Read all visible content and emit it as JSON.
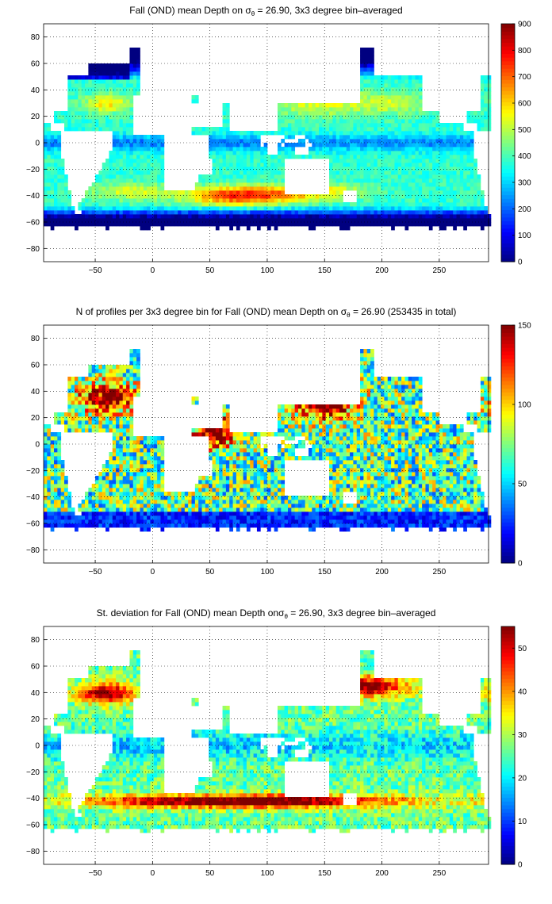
{
  "chart_data": [
    {
      "type": "heatmap",
      "title": "Fall (OND) mean Depth on σθ = 26.90, 3x3 degree bin–averaged",
      "title_parts": {
        "pre": "Fall (OND) mean Depth on ",
        "sym": "σ",
        "sub": "θ",
        "post": " = 26.90, 3x3 degree bin–averaged"
      },
      "xlim": [
        -95,
        293
      ],
      "ylim": [
        -90,
        90
      ],
      "xticks": [
        -50,
        0,
        50,
        100,
        150,
        200,
        250
      ],
      "yticks": [
        -80,
        -60,
        -40,
        -20,
        0,
        20,
        40,
        60,
        80
      ],
      "grid": true,
      "colorbar": {
        "range": [
          0,
          900
        ],
        "ticks": [
          0,
          100,
          200,
          300,
          400,
          500,
          600,
          700,
          800,
          900
        ]
      },
      "field": "mean_depth"
    },
    {
      "type": "heatmap",
      "title": "N of profiles per 3x3 degree bin for Fall (OND) mean Depth on σθ = 26.90 (253435 in total)",
      "title_parts": {
        "pre": "N of profiles per 3x3 degree bin for Fall (OND) mean Depth on ",
        "sym": "σ",
        "sub": "θ",
        "post": " = 26.90 (253435 in total)"
      },
      "xlim": [
        -95,
        293
      ],
      "ylim": [
        -90,
        90
      ],
      "xticks": [
        -50,
        0,
        50,
        100,
        150,
        200,
        250
      ],
      "yticks": [
        -80,
        -60,
        -40,
        -20,
        0,
        20,
        40,
        60,
        80
      ],
      "grid": true,
      "colorbar": {
        "range": [
          0,
          150
        ],
        "ticks": [
          0,
          50,
          100,
          150
        ]
      },
      "field": "profile_count"
    },
    {
      "type": "heatmap",
      "title": "St. deviation for Fall (OND) mean Depth onσθ = 26.90, 3x3 degree bin–averaged",
      "title_parts": {
        "pre": "St. deviation for Fall (OND) mean Depth on",
        "sym": "σ",
        "sub": "θ",
        "post": " = 26.90, 3x3 degree bin–averaged"
      },
      "xlim": [
        -95,
        293
      ],
      "ylim": [
        -90,
        90
      ],
      "xticks": [
        -50,
        0,
        50,
        100,
        150,
        200,
        250
      ],
      "yticks": [
        -80,
        -60,
        -40,
        -20,
        0,
        20,
        40,
        60,
        80
      ],
      "grid": true,
      "colorbar": {
        "range": [
          0,
          55
        ],
        "ticks": [
          0,
          10,
          20,
          30,
          40,
          50
        ]
      },
      "field": "std_dev"
    }
  ]
}
